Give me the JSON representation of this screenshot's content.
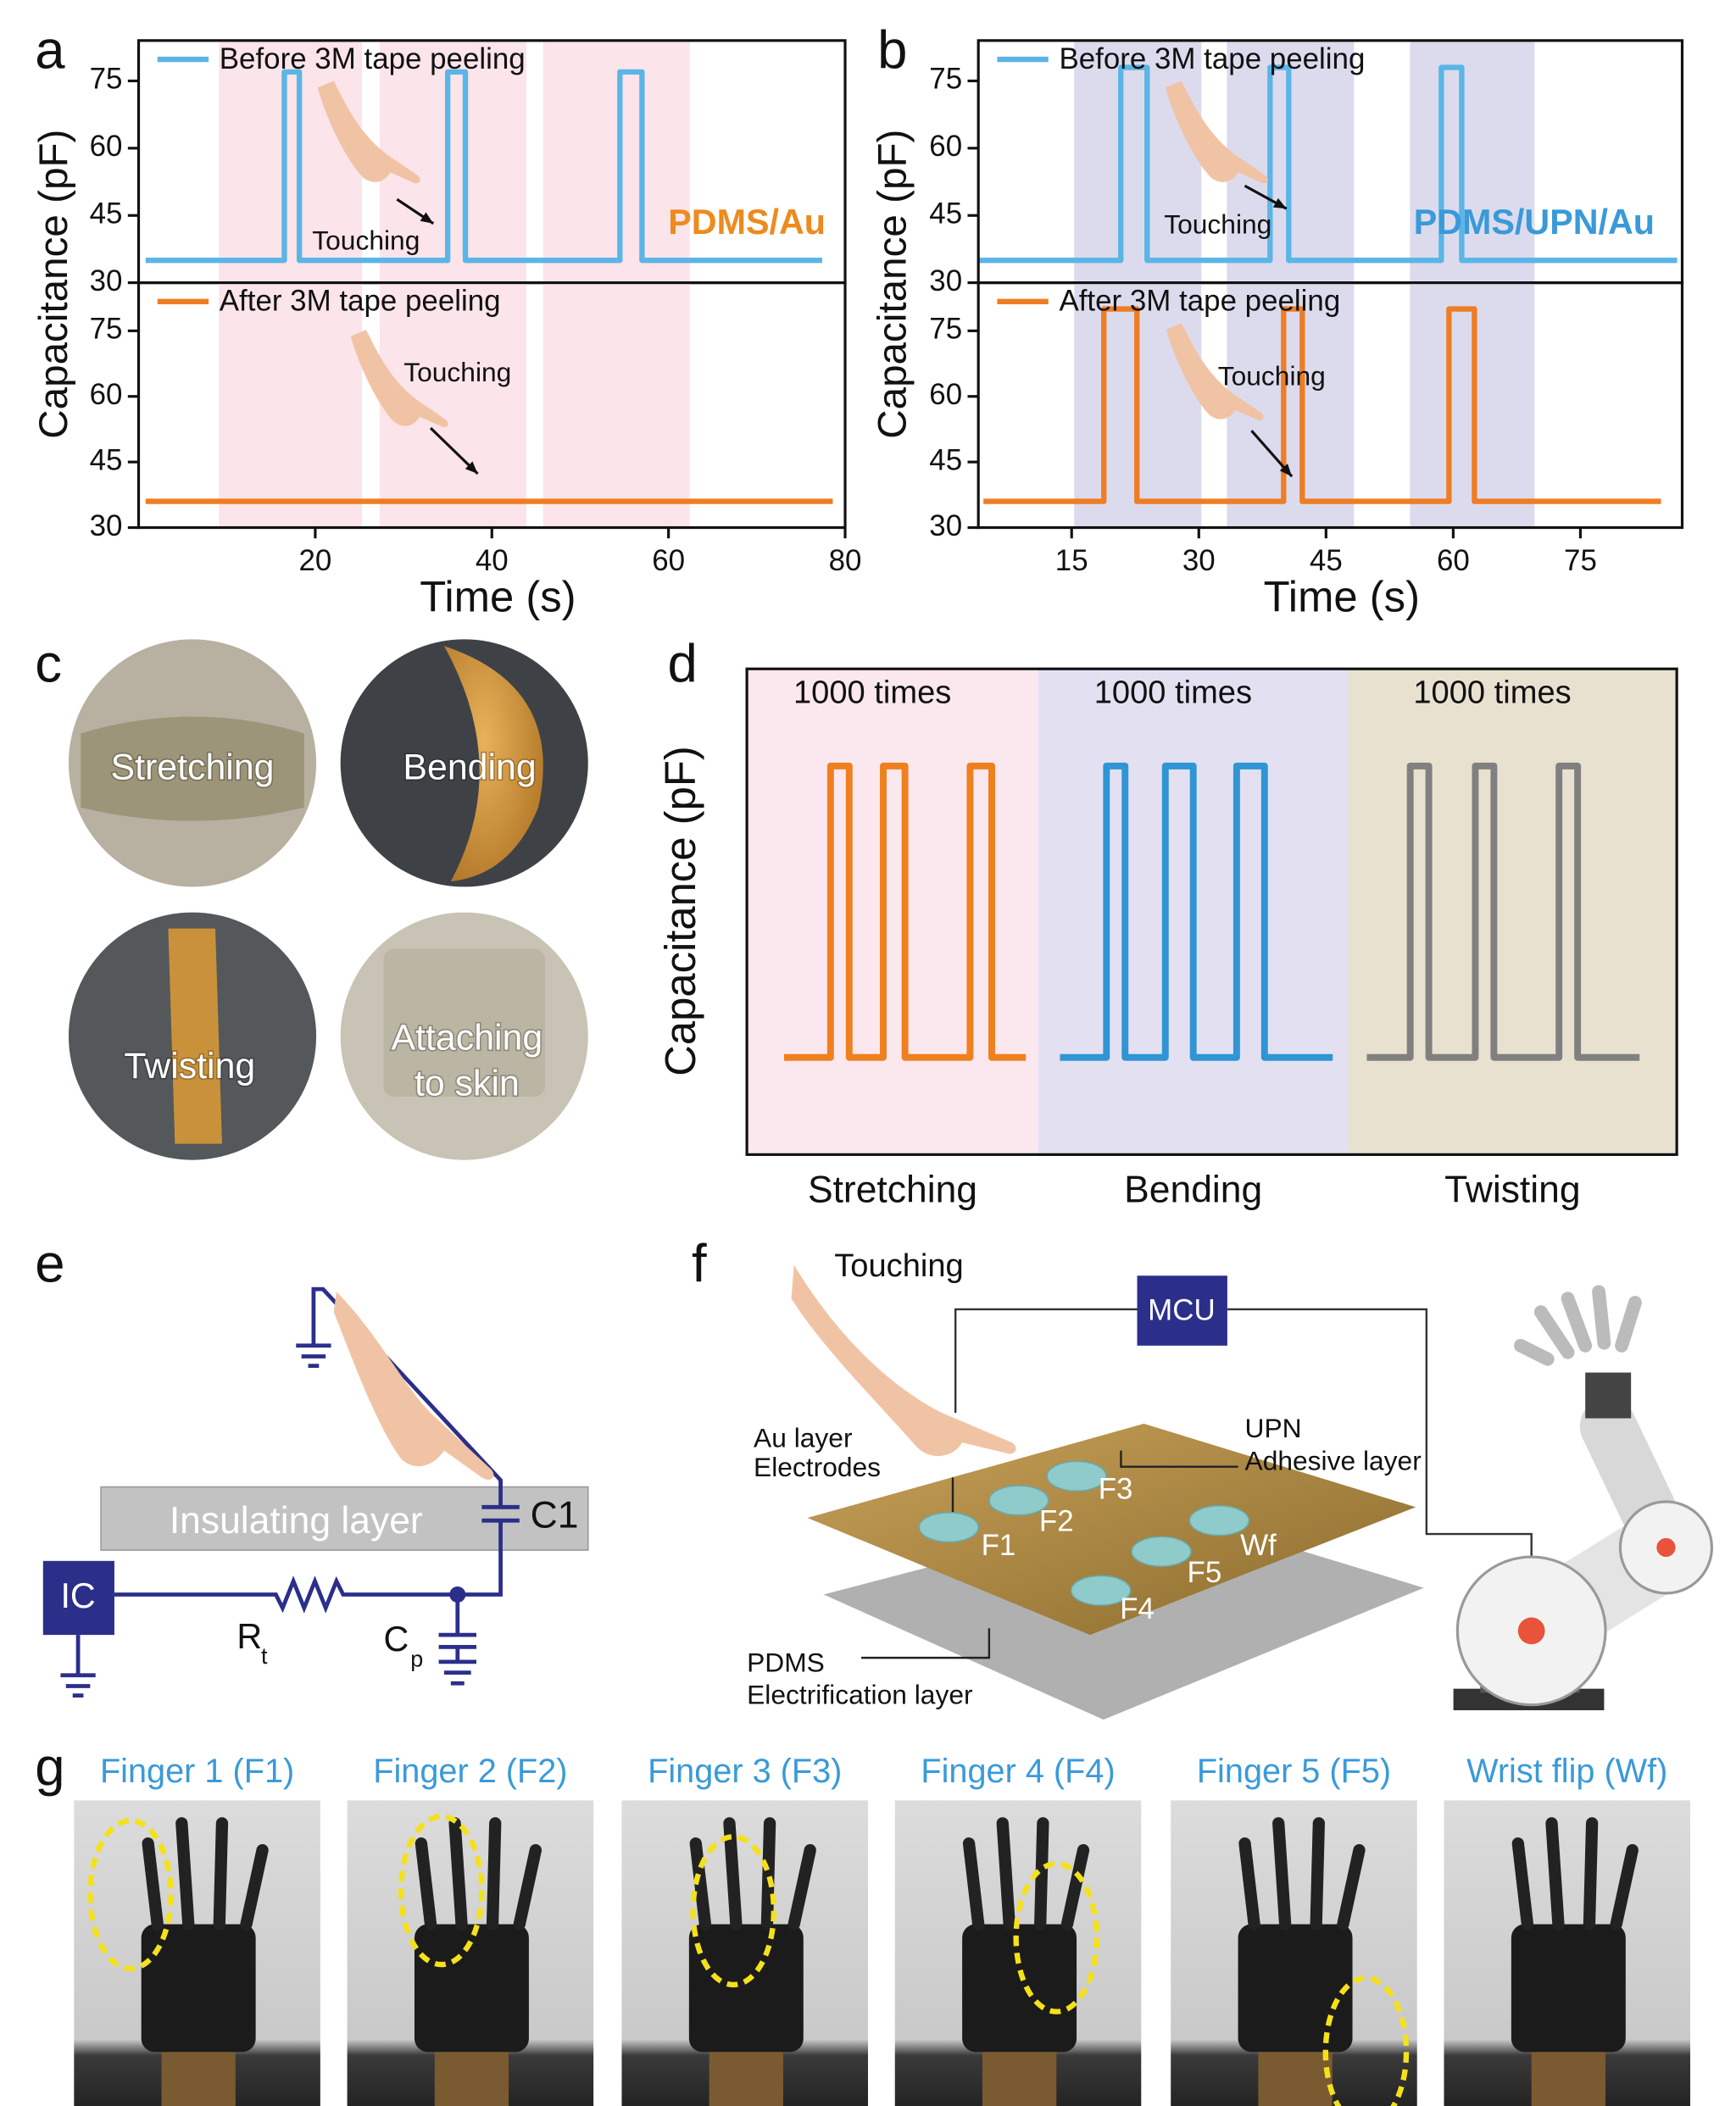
{
  "panel_labels": [
    "a",
    "b",
    "c",
    "d",
    "e",
    "f",
    "g"
  ],
  "chart_data": [
    {
      "type": "line",
      "xlim": [
        0,
        80
      ],
      "ylim": [
        30,
        84
      ],
      "yticks": [
        30,
        45,
        60,
        75
      ],
      "ylabel": "Capacitance (pF)",
      "legend": true,
      "shade_color": "#fbe4ea",
      "shaded": [
        [
          9.1,
          25.3
        ],
        [
          27.3,
          43.9
        ],
        [
          45.8,
          62.4
        ]
      ],
      "annotations": [
        "Touching",
        "PDMS/Au"
      ],
      "series": [
        {
          "name": "Before 3M tape peeling",
          "color": "#5bb5e6",
          "x": [
            0.8,
            16.5,
            16.5,
            18.2,
            18.2,
            35,
            35,
            37,
            37,
            54.5,
            54.5,
            57,
            57,
            77.4
          ],
          "values": [
            35,
            35,
            77,
            77,
            35,
            35,
            77,
            77,
            35,
            35,
            77,
            77,
            35,
            35
          ]
        }
      ]
    },
    {
      "type": "line",
      "xlim": [
        0,
        80
      ],
      "ylim": [
        30,
        86
      ],
      "yticks": [
        30,
        45,
        60,
        75
      ],
      "xticks": [
        20,
        40,
        60,
        80
      ],
      "xlabel": "Time (s)",
      "legend": true,
      "shade_color": "#fbe4ea",
      "shaded": [
        [
          9.1,
          25.3
        ],
        [
          27.3,
          43.9
        ],
        [
          45.8,
          62.4
        ]
      ],
      "annotations": [
        "Touching"
      ],
      "series": [
        {
          "name": "After 3M tape peeling",
          "color": "#ee7d23",
          "x": [
            0.8,
            78.6
          ],
          "values": [
            36,
            36
          ]
        }
      ]
    },
    {
      "type": "line",
      "xlim": [
        4,
        87
      ],
      "ylim": [
        30,
        84
      ],
      "yticks": [
        30,
        45,
        60,
        75
      ],
      "ylabel": "Capacitance (pF)",
      "legend": true,
      "shade_color": "#dcdbee",
      "shaded": [
        [
          15.3,
          30.3
        ],
        [
          33.3,
          48.3
        ],
        [
          54.9,
          69.6
        ]
      ],
      "annotations": [
        "Touching",
        "PDMS/UPN/Au"
      ],
      "series": [
        {
          "name": "Before 3M tape peeling",
          "color": "#5bb5e6",
          "x": [
            4,
            20.8,
            20.8,
            23.9,
            23.9,
            38.4,
            38.4,
            40.6,
            40.6,
            58.6,
            58.6,
            61,
            61,
            86.4
          ],
          "values": [
            35,
            35,
            78,
            78,
            35,
            35,
            78,
            78,
            35,
            35,
            78,
            78,
            35,
            35
          ]
        }
      ]
    },
    {
      "type": "line",
      "xlim": [
        4,
        87
      ],
      "ylim": [
        30,
        86
      ],
      "yticks": [
        30,
        45,
        60,
        75
      ],
      "xticks": [
        15,
        30,
        45,
        60,
        75
      ],
      "xlabel": "Time (s)",
      "legend": true,
      "shade_color": "#dcdbee",
      "shaded": [
        [
          15.3,
          30.3
        ],
        [
          33.3,
          48.3
        ],
        [
          54.9,
          69.6
        ]
      ],
      "annotations": [
        "Touching"
      ],
      "series": [
        {
          "name": "After 3M tape peeling",
          "color": "#ee7d23",
          "x": [
            4.6,
            18.8,
            18.8,
            22.7,
            22.7,
            40,
            40,
            42.2,
            42.2,
            59.5,
            59.5,
            62.5,
            62.5,
            84.5
          ],
          "values": [
            36,
            36,
            80,
            80,
            36,
            36,
            80,
            80,
            36,
            36,
            80,
            80,
            36,
            36
          ]
        }
      ]
    },
    {
      "type": "line",
      "xlim": [
        0,
        300
      ],
      "ylim": [
        0,
        100
      ],
      "ylabel": "Capacitance (pF)",
      "legend": false,
      "series": [
        {
          "name": "Stretching",
          "annotation": "1000 times",
          "color": "#f07f1e",
          "background": "#fbe8ee",
          "span": [
            0,
            94
          ],
          "x": [
            12,
            27,
            27,
            33,
            33,
            44,
            44,
            51,
            51,
            72,
            72,
            79,
            79,
            90
          ],
          "values": [
            20,
            20,
            80,
            80,
            20,
            20,
            80,
            80,
            20,
            20,
            80,
            80,
            20,
            20
          ]
        },
        {
          "name": "Bending",
          "annotation": "1000 times",
          "color": "#2f95d5",
          "background": "#e3e1f1",
          "span": [
            94,
            194
          ],
          "x": [
            101,
            116,
            116,
            122,
            122,
            135,
            135,
            144,
            144,
            158,
            158,
            167,
            167,
            189
          ],
          "values": [
            20,
            20,
            80,
            80,
            20,
            20,
            80,
            80,
            20,
            20,
            80,
            80,
            20,
            20
          ]
        },
        {
          "name": "Twisting",
          "annotation": "1000 times",
          "color": "#808080",
          "background": "#e9e1d0",
          "span": [
            194,
            300
          ],
          "x": [
            200,
            214,
            214,
            220,
            220,
            235,
            235,
            241,
            241,
            262,
            262,
            268,
            268,
            288
          ],
          "values": [
            20,
            20,
            80,
            80,
            20,
            20,
            80,
            80,
            20,
            20,
            80,
            80,
            20,
            20
          ]
        }
      ]
    }
  ],
  "panel_c": {
    "photos": [
      [
        "Stretching"
      ],
      [
        "Bending"
      ],
      [
        "Twisting"
      ],
      [
        "Attaching",
        "to skin"
      ]
    ]
  },
  "panel_e": {
    "layer": "Insulating layer",
    "capacitor": "C1",
    "chip": "IC",
    "resistor": "R",
    "resistor_sub": "t",
    "parasitic": "C",
    "parasitic_sub": "p"
  },
  "panel_f": {
    "action": "Touching",
    "controller": "MCU",
    "electrode_label": [
      "Au layer",
      "Electrodes"
    ],
    "adhesive_label": [
      "UPN",
      "Adhesive layer"
    ],
    "substrate_label": [
      "PDMS",
      "Electrification layer"
    ],
    "pads": [
      "F1",
      "F2",
      "F3",
      "F4",
      "F5",
      "Wf"
    ]
  },
  "panel_g": {
    "photos": [
      "Finger 1 (F1)",
      "Finger 2 (F2)",
      "Finger 3 (F3)",
      "Finger 4 (F4)",
      "Finger 5 (F5)",
      "Wrist flip (Wf)"
    ]
  }
}
